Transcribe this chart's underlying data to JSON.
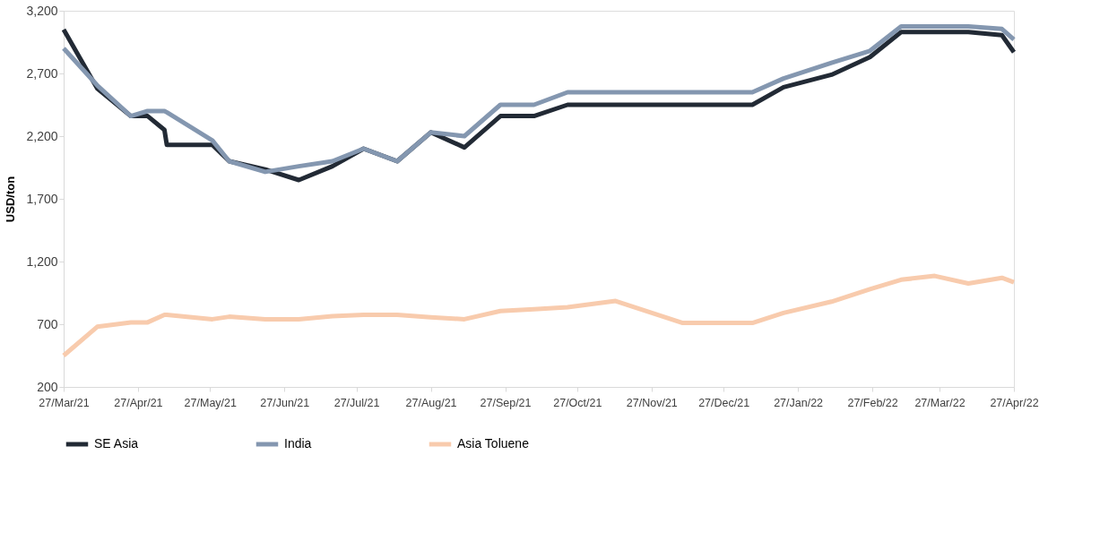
{
  "chart_data": {
    "type": "line",
    "ylabel": "USD/ton",
    "x": [
      "2021-03-27",
      "2021-04-10",
      "2021-04-24",
      "2021-05-01",
      "2021-05-08",
      "2021-05-09",
      "2021-05-28",
      "2021-06-04",
      "2021-06-19",
      "2021-07-03",
      "2021-07-17",
      "2021-07-30",
      "2021-08-13",
      "2021-08-27",
      "2021-09-10",
      "2021-09-25",
      "2021-10-09",
      "2021-10-23",
      "2021-11-12",
      "2021-12-10",
      "2022-01-08",
      "2022-01-21",
      "2022-02-10",
      "2022-02-26",
      "2022-03-11",
      "2022-03-25",
      "2022-04-08",
      "2022-04-22",
      "2022-04-27"
    ],
    "series": [
      {
        "name": "SE Asia",
        "color": "#222a35",
        "values": [
          3050,
          2580,
          2360,
          2360,
          2250,
          2130,
          2130,
          2000,
          1935,
          1850,
          1960,
          2100,
          2000,
          2230,
          2110,
          2360,
          2360,
          2450,
          2450,
          2450,
          2450,
          2590,
          2690,
          2830,
          3030,
          3030,
          3030,
          3005,
          2870
        ]
      },
      {
        "name": "India",
        "color": "#8497b0",
        "values": [
          2900,
          2605,
          2360,
          2400,
          2400,
          2390,
          2165,
          2000,
          1915,
          1960,
          2000,
          2100,
          2000,
          2230,
          2200,
          2450,
          2450,
          2550,
          2550,
          2550,
          2550,
          2660,
          2785,
          2880,
          3075,
          3075,
          3075,
          3055,
          2970
        ]
      },
      {
        "name": "Asia Toluene",
        "color": "#f8cbad",
        "values": [
          450,
          680,
          715,
          715,
          775,
          775,
          740,
          760,
          740,
          740,
          765,
          775,
          775,
          755,
          740,
          805,
          820,
          835,
          885,
          710,
          710,
          790,
          880,
          980,
          1055,
          1085,
          1025,
          1070,
          1035
        ]
      }
    ],
    "xlim": [
      "2021-03-27",
      "2022-04-27"
    ],
    "xticks": [
      {
        "value": "2021-03-27",
        "label": "27/Mar/21"
      },
      {
        "value": "2021-04-27",
        "label": "27/Apr/21"
      },
      {
        "value": "2021-05-27",
        "label": "27/May/21"
      },
      {
        "value": "2021-06-27",
        "label": "27/Jun/21"
      },
      {
        "value": "2021-07-27",
        "label": "27/Jul/21"
      },
      {
        "value": "2021-08-27",
        "label": "27/Aug/21"
      },
      {
        "value": "2021-09-27",
        "label": "27/Sep/21"
      },
      {
        "value": "2021-10-27",
        "label": "27/Oct/21"
      },
      {
        "value": "2021-11-27",
        "label": "27/Nov/21"
      },
      {
        "value": "2021-12-27",
        "label": "27/Dec/21"
      },
      {
        "value": "2022-01-27",
        "label": "27/Jan/22"
      },
      {
        "value": "2022-02-27",
        "label": "27/Feb/22"
      },
      {
        "value": "2022-03-27",
        "label": "27/Mar/22"
      },
      {
        "value": "2022-04-27",
        "label": "27/Apr/22"
      }
    ],
    "ylim": [
      200,
      3200
    ],
    "yticks": [
      {
        "value": 200,
        "label": "200"
      },
      {
        "value": 700,
        "label": "700"
      },
      {
        "value": 1200,
        "label": "1,200"
      },
      {
        "value": 1700,
        "label": "1,700"
      },
      {
        "value": 2200,
        "label": "2,200"
      },
      {
        "value": 2700,
        "label": "2,700"
      },
      {
        "value": 3200,
        "label": "3,200"
      }
    ],
    "grid": false,
    "legend": "bottom",
    "marker": "none",
    "line_style": "solid"
  }
}
